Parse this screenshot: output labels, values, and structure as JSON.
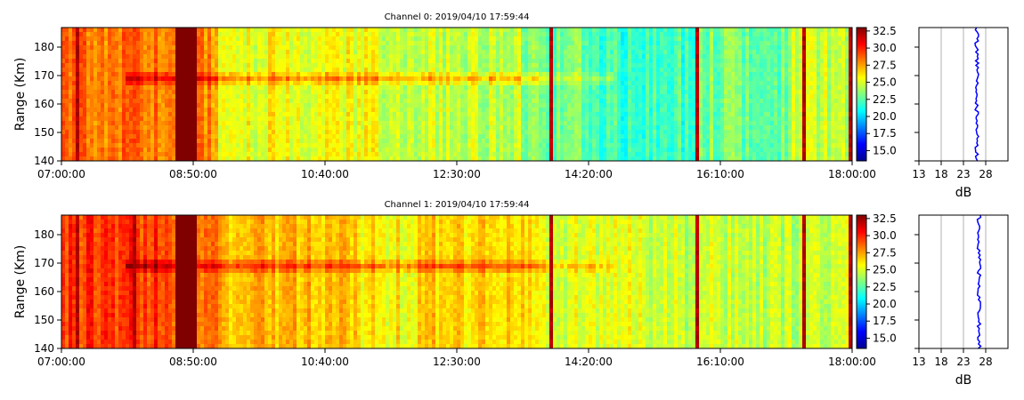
{
  "chart_data": [
    {
      "type": "heatmap",
      "title": "Channel 0: 2019/04/10 17:59:44",
      "xlabel": "",
      "ylabel": "Range (Km)",
      "x_ticks": [
        "07:00:00",
        "08:50:00",
        "10:40:00",
        "12:30:00",
        "14:20:00",
        "16:10:00",
        "18:00:00"
      ],
      "y_ticks": [
        140,
        150,
        160,
        170,
        180
      ],
      "xlim": [
        "07:00:00",
        "18:00:00"
      ],
      "ylim": [
        140,
        187
      ],
      "colorbar": {
        "ticks": [
          "15.0",
          "17.5",
          "20.0",
          "22.5",
          "25.0",
          "27.5",
          "30.0",
          "32.5"
        ],
        "range": [
          13.5,
          33.0
        ],
        "colormap": "jet"
      },
      "profile": {
        "xlabel": "dB",
        "x_ticks": [
          "13",
          "18",
          "23",
          "28"
        ],
        "xlim": [
          13,
          33
        ],
        "ylim": [
          140,
          187
        ],
        "mean_value": 26.0
      },
      "features": {
        "band_center_km": 169,
        "strong_column_times": [
          "08:40:00",
          "08:44:00",
          "08:48:00"
        ],
        "thin_red_lines": [
          "07:13:00",
          "13:48:00",
          "15:52:00",
          "17:20:00",
          "17:58:00"
        ]
      }
    },
    {
      "type": "heatmap",
      "title": "Channel 1: 2019/04/10 17:59:44",
      "xlabel": "",
      "ylabel": "Range (Km)",
      "x_ticks": [
        "07:00:00",
        "08:50:00",
        "10:40:00",
        "12:30:00",
        "14:20:00",
        "16:10:00",
        "18:00:00"
      ],
      "y_ticks": [
        140,
        150,
        160,
        170,
        180
      ],
      "xlim": [
        "07:00:00",
        "18:00:00"
      ],
      "ylim": [
        140,
        187
      ],
      "colorbar": {
        "ticks": [
          "15.0",
          "17.5",
          "20.0",
          "22.5",
          "25.0",
          "27.5",
          "30.0",
          "32.5"
        ],
        "range": [
          13.5,
          33.0
        ],
        "colormap": "jet"
      },
      "profile": {
        "xlabel": "dB",
        "x_ticks": [
          "13",
          "18",
          "23",
          "28"
        ],
        "xlim": [
          13,
          33
        ],
        "ylim": [
          140,
          187
        ],
        "mean_value": 26.5
      },
      "features": {
        "band_center_km": 169,
        "strong_column_times": [
          "08:40:00",
          "08:44:00",
          "08:48:00"
        ],
        "thin_red_lines": [
          "07:13:00",
          "08:00:00",
          "13:48:00",
          "15:52:00",
          "17:20:00",
          "17:58:00"
        ]
      }
    }
  ]
}
